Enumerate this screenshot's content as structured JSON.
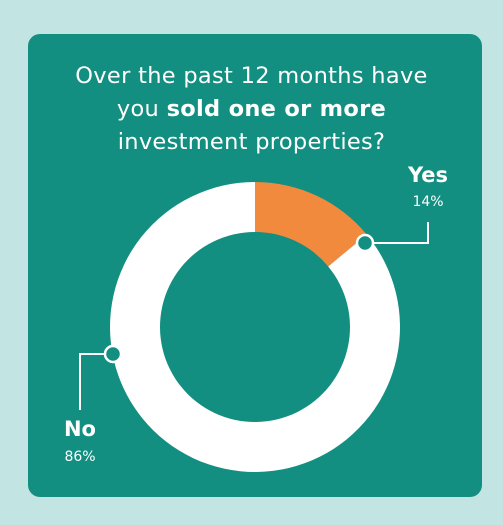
{
  "colors": {
    "page_background": "#c2e4e2",
    "card_background": "#128f80",
    "yes_slice": "#f18a3d",
    "no_slice": "#ffffff",
    "text": "#ffffff"
  },
  "title": {
    "line1": "Over the past 12 months have",
    "line2_prefix": "you ",
    "line2_bold": "sold one or more",
    "line3": "investment properties?"
  },
  "chart_data": {
    "type": "pie",
    "title": "Over the past 12 months have you sold one or more investment properties?",
    "donut": true,
    "labels": [
      "Yes",
      "No"
    ],
    "values": [
      14,
      86
    ],
    "value_labels": [
      "14%",
      "86%"
    ],
    "colors": [
      "#f18a3d",
      "#ffffff"
    ],
    "legend": "none (direct callout labels)"
  }
}
